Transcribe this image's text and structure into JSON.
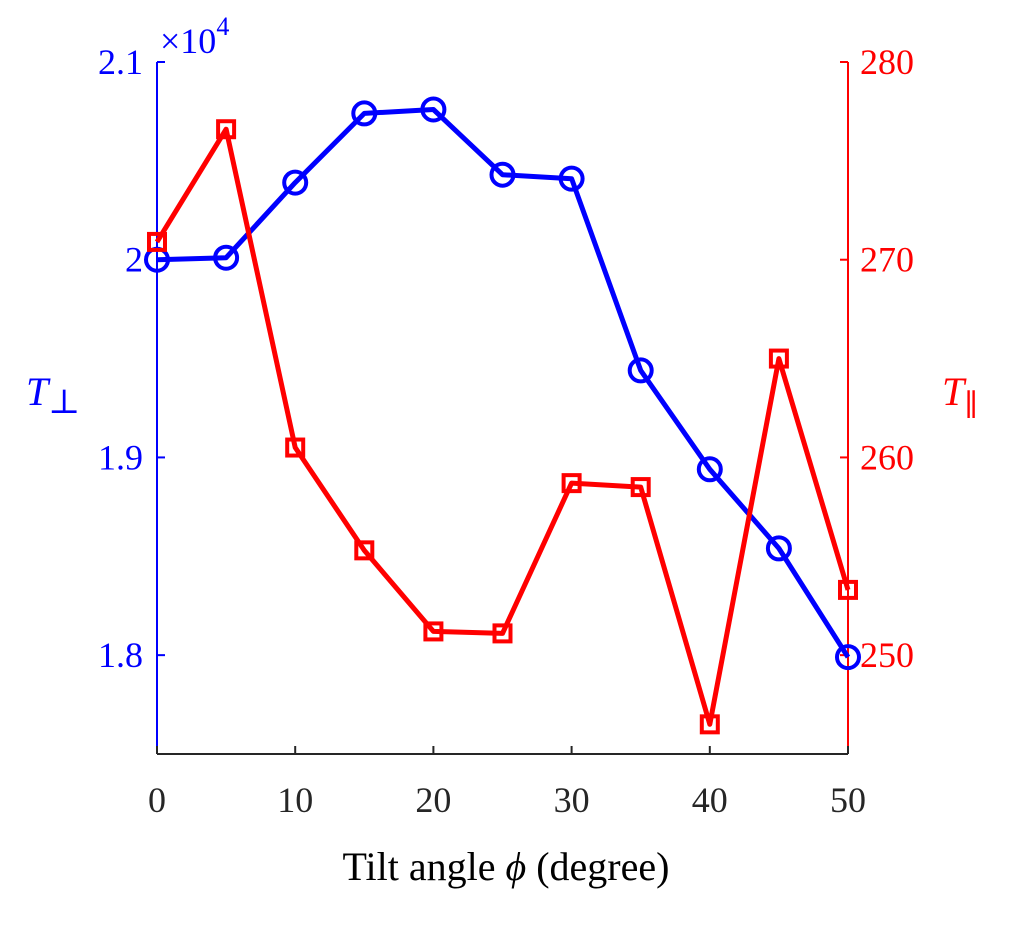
{
  "chart_data": {
    "type": "line",
    "xlabel": {
      "prefix": "Tilt angle ",
      "symbol": "ϕ",
      "suffix": " (degree)"
    },
    "x": [
      0,
      5,
      10,
      15,
      20,
      25,
      30,
      35,
      40,
      45,
      50
    ],
    "xlim": [
      0,
      50
    ],
    "xticks": [
      "0",
      "10",
      "20",
      "30",
      "40",
      "50"
    ],
    "left_axis": {
      "label_main": "T",
      "label_sub": "⊥",
      "color": "#0000ff",
      "multiplier_text": "×10",
      "multiplier_exp": "4",
      "ylim": [
        1.75,
        2.1
      ],
      "yticks": [
        "1.8",
        "1.9",
        "2",
        "2.1"
      ]
    },
    "right_axis": {
      "label_main": "T",
      "label_sub": "∥",
      "color": "#ff0000",
      "ylim": [
        245,
        280
      ],
      "yticks": [
        "250",
        "260",
        "270",
        "280"
      ]
    },
    "series": [
      {
        "axis": "left",
        "marker": "circle",
        "color": "#0000ff",
        "values": [
          2.0,
          2.001,
          2.039,
          2.074,
          2.076,
          2.043,
          2.041,
          1.944,
          1.894,
          1.854,
          1.799
        ]
      },
      {
        "axis": "right",
        "marker": "square",
        "color": "#ff0000",
        "values": [
          270.9,
          276.6,
          260.5,
          255.3,
          251.2,
          251.1,
          258.7,
          258.5,
          246.5,
          265.0,
          253.3
        ]
      }
    ]
  }
}
